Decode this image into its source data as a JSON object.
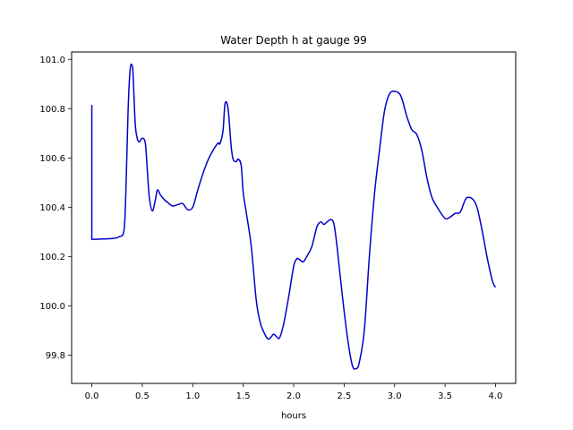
{
  "chart_data": {
    "type": "line",
    "title": "Water Depth h at gauge 99",
    "xlabel": "hours",
    "ylabel": "",
    "xlim": [
      -0.2,
      4.2
    ],
    "ylim": [
      99.685,
      101.03
    ],
    "xticks": [
      0.0,
      0.5,
      1.0,
      1.5,
      2.0,
      2.5,
      3.0,
      3.5,
      4.0
    ],
    "xtick_labels": [
      "0.0",
      "0.5",
      "1.0",
      "1.5",
      "2.0",
      "2.5",
      "3.0",
      "3.5",
      "4.0"
    ],
    "yticks": [
      99.8,
      100.0,
      100.2,
      100.4,
      100.6,
      100.8,
      101.0
    ],
    "ytick_labels": [
      "99.8",
      "100.0",
      "100.2",
      "100.4",
      "100.6",
      "100.8",
      "101.0"
    ],
    "grid": false,
    "legend": "none",
    "series": [
      {
        "color": "#0000cc",
        "x": [
          0.0,
          0.0,
          0.0,
          0.1,
          0.2,
          0.27,
          0.32,
          0.34,
          0.36,
          0.38,
          0.4,
          0.41,
          0.43,
          0.45,
          0.47,
          0.5,
          0.53,
          0.55,
          0.57,
          0.6,
          0.63,
          0.65,
          0.68,
          0.72,
          0.75,
          0.8,
          0.85,
          0.9,
          0.95,
          1.0,
          1.05,
          1.1,
          1.15,
          1.2,
          1.25,
          1.27,
          1.3,
          1.32,
          1.35,
          1.38,
          1.4,
          1.43,
          1.45,
          1.48,
          1.5,
          1.53,
          1.58,
          1.63,
          1.67,
          1.72,
          1.75,
          1.78,
          1.8,
          1.83,
          1.86,
          1.9,
          1.95,
          2.0,
          2.03,
          2.05,
          2.08,
          2.1,
          2.13,
          2.18,
          2.23,
          2.27,
          2.3,
          2.33,
          2.37,
          2.4,
          2.43,
          2.48,
          2.53,
          2.58,
          2.62,
          2.65,
          2.7,
          2.75,
          2.8,
          2.85,
          2.9,
          2.95,
          3.0,
          3.05,
          3.08,
          3.12,
          3.17,
          3.22,
          3.27,
          3.32,
          3.37,
          3.43,
          3.5,
          3.55,
          3.6,
          3.65,
          3.7,
          3.73,
          3.78,
          3.82,
          3.87,
          3.92,
          3.97,
          4.0
        ],
        "y": [
          100.815,
          100.35,
          100.27,
          100.271,
          100.273,
          100.28,
          100.31,
          100.5,
          100.8,
          100.96,
          100.975,
          100.93,
          100.74,
          100.68,
          100.665,
          100.68,
          100.66,
          100.55,
          100.44,
          100.385,
          100.43,
          100.47,
          100.45,
          100.43,
          100.42,
          100.405,
          100.41,
          100.415,
          100.39,
          100.4,
          100.47,
          100.535,
          100.59,
          100.63,
          100.66,
          100.658,
          100.71,
          100.82,
          100.8,
          100.65,
          100.595,
          100.585,
          100.595,
          100.57,
          100.46,
          100.38,
          100.24,
          100.02,
          99.93,
          99.88,
          99.865,
          99.875,
          99.885,
          99.875,
          99.87,
          99.925,
          100.035,
          100.16,
          100.19,
          100.19,
          100.18,
          100.18,
          100.2,
          100.24,
          100.32,
          100.34,
          100.33,
          100.34,
          100.35,
          100.33,
          100.24,
          100.05,
          99.88,
          99.76,
          99.745,
          99.77,
          99.9,
          100.2,
          100.45,
          100.63,
          100.79,
          100.86,
          100.87,
          100.86,
          100.83,
          100.77,
          100.715,
          100.695,
          100.63,
          100.52,
          100.44,
          100.395,
          100.355,
          100.36,
          100.375,
          100.38,
          100.43,
          100.44,
          100.43,
          100.395,
          100.3,
          100.19,
          100.1,
          100.075
        ]
      }
    ]
  }
}
